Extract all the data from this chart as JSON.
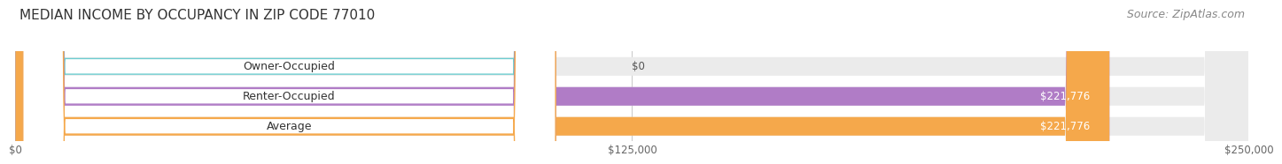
{
  "title": "MEDIAN INCOME BY OCCUPANCY IN ZIP CODE 77010",
  "source": "Source: ZipAtlas.com",
  "categories": [
    "Owner-Occupied",
    "Renter-Occupied",
    "Average"
  ],
  "values": [
    0,
    221776,
    221776
  ],
  "bar_colors": [
    "#6dcdd0",
    "#b07cc6",
    "#f5a84b"
  ],
  "value_labels": [
    "$0",
    "$221,776",
    "$221,776"
  ],
  "xlim": [
    0,
    250000
  ],
  "xtick_values": [
    0,
    125000,
    250000
  ],
  "xtick_labels": [
    "$0",
    "$125,000",
    "$250,000"
  ],
  "background_color": "#ffffff",
  "bar_bg_color": "#ebebeb",
  "bar_height": 0.62,
  "title_fontsize": 11,
  "source_fontsize": 9,
  "label_fontsize": 9,
  "value_fontsize": 8.5,
  "tick_fontsize": 8.5
}
